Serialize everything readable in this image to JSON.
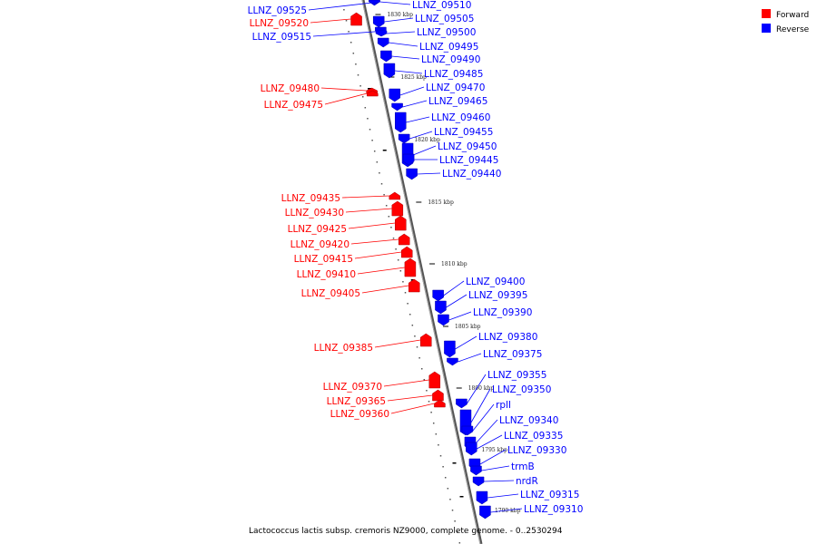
{
  "caption": "Lactococcus lactis subsp. cremoris NZ9000, complete genome. - 0..2530294",
  "legend": {
    "forward_label": "Forward",
    "reverse_label": "Reverse",
    "forward_color": "#ff0000",
    "reverse_color": "#0000ff"
  },
  "ticks": [
    "1830 kbp",
    "1825 kbp",
    "1820 kbp",
    "1815 kbp",
    "1810 kbp",
    "1805 kbp",
    "1800 kbp",
    "1795 kbp",
    "1790 kbp"
  ],
  "forward_genes": [
    "LLNZ_09520",
    "LLNZ_09480",
    "LLNZ_09475",
    "LLNZ_09435",
    "LLNZ_09430",
    "LLNZ_09425",
    "LLNZ_09420",
    "LLNZ_09415",
    "LLNZ_09410",
    "LLNZ_09405",
    "LLNZ_09385",
    "LLNZ_09370",
    "LLNZ_09365",
    "LLNZ_09360"
  ],
  "reverse_genes": [
    "LLNZ_09525",
    "LLNZ_09515",
    "LLNZ_09510",
    "LLNZ_09505",
    "LLNZ_09500",
    "LLNZ_09495",
    "LLNZ_09490",
    "LLNZ_09485",
    "LLNZ_09470",
    "LLNZ_09465",
    "LLNZ_09460",
    "LLNZ_09455",
    "LLNZ_09450",
    "LLNZ_09445",
    "LLNZ_09440",
    "LLNZ_09400",
    "LLNZ_09395",
    "LLNZ_09390",
    "LLNZ_09380",
    "LLNZ_09375",
    "LLNZ_09355",
    "LLNZ_09350",
    "rplI",
    "LLNZ_09340",
    "LLNZ_09335",
    "LLNZ_09330",
    "trmB",
    "nrdR",
    "LLNZ_09315",
    "LLNZ_09310"
  ]
}
